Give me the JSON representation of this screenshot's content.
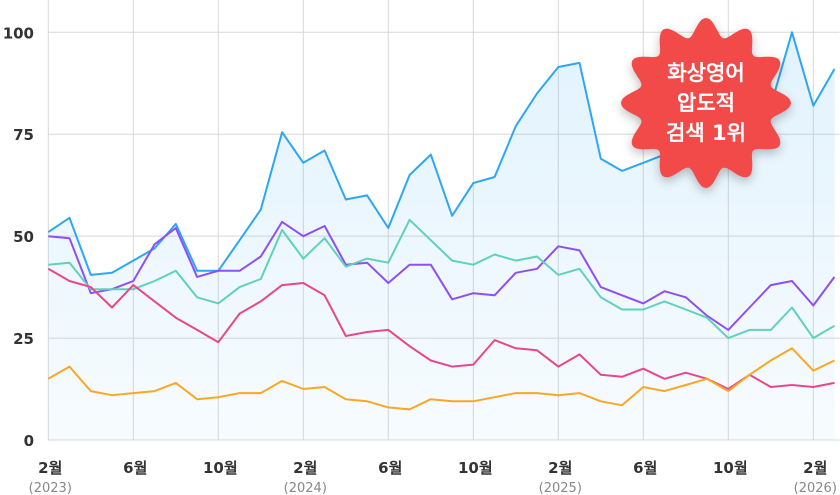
{
  "chart_data": {
    "type": "line",
    "title": "",
    "xlabel": "",
    "ylabel": "",
    "ylim": [
      0,
      100
    ],
    "yticks": [
      "0",
      "25",
      "50",
      "75",
      "100"
    ],
    "grid": true,
    "x": [
      "2023-02",
      "2023-03",
      "2023-04",
      "2023-05",
      "2023-06",
      "2023-07",
      "2023-08",
      "2023-09",
      "2023-10",
      "2023-11",
      "2023-12",
      "2024-01",
      "2024-02",
      "2024-03",
      "2024-04",
      "2024-05",
      "2024-06",
      "2024-07",
      "2024-08",
      "2024-09",
      "2024-10",
      "2024-11",
      "2024-12",
      "2025-01",
      "2025-02",
      "2025-03",
      "2025-04",
      "2025-05",
      "2025-06",
      "2025-07",
      "2025-08",
      "2025-09",
      "2025-10",
      "2025-11",
      "2025-12",
      "2026-01",
      "2026-02",
      "2026-03"
    ],
    "xticks": [
      {
        "label": "2월",
        "year": "(2023)",
        "index": 0
      },
      {
        "label": "6월",
        "year": "",
        "index": 4
      },
      {
        "label": "10월",
        "year": "",
        "index": 8
      },
      {
        "label": "2월",
        "year": "(2024)",
        "index": 12
      },
      {
        "label": "6월",
        "year": "",
        "index": 16
      },
      {
        "label": "10월",
        "year": "",
        "index": 20
      },
      {
        "label": "2월",
        "year": "(2025)",
        "index": 24
      },
      {
        "label": "6월",
        "year": "",
        "index": 28
      },
      {
        "label": "10월",
        "year": "",
        "index": 32
      },
      {
        "label": "2월",
        "year": "(2026)",
        "index": 36
      }
    ],
    "series": [
      {
        "color": "#2ea6f5",
        "filled": true,
        "values": [
          51,
          54.5,
          40.5,
          41,
          44,
          47,
          53,
          41.5,
          41.5,
          49,
          56.5,
          75.5,
          68,
          71,
          59,
          60,
          52,
          65,
          70,
          55,
          63,
          64.5,
          77,
          85,
          91.5,
          92.5,
          69,
          66,
          68,
          70,
          72,
          75,
          78,
          80,
          82,
          100,
          82,
          91
        ]
      },
      {
        "color": "#8e4ff5",
        "values": [
          50,
          49.5,
          36,
          37,
          39,
          48,
          52,
          40,
          41.5,
          41.5,
          45,
          53.5,
          50,
          52.5,
          43,
          43.5,
          38.5,
          43,
          43,
          34.5,
          36,
          35.5,
          41,
          42,
          47.5,
          46.5,
          37.5,
          35.5,
          33.5,
          36.5,
          35,
          30.5,
          27,
          32.5,
          38,
          39,
          33,
          40
        ]
      },
      {
        "color": "#5fd1bd",
        "values": [
          43,
          43.5,
          37,
          37,
          37,
          39,
          41.5,
          35,
          33.5,
          37.5,
          39.5,
          51.5,
          44.5,
          49.5,
          42.5,
          44.5,
          43.5,
          54,
          49,
          44,
          43,
          45.5,
          44,
          45,
          40.5,
          42,
          35,
          32,
          32,
          34,
          32,
          30,
          25,
          27,
          27,
          32.5,
          25,
          28
        ]
      },
      {
        "color": "#e8478c",
        "values": [
          42,
          39,
          37.5,
          32.5,
          38,
          34,
          30,
          27,
          24,
          31,
          34,
          38,
          38.5,
          35.5,
          25.5,
          26.5,
          27,
          23,
          19.5,
          18,
          18.5,
          24.5,
          22.5,
          22,
          18,
          21,
          16,
          15.5,
          17.5,
          15,
          16.5,
          15,
          12.5,
          16,
          13,
          13.5,
          13,
          14
        ]
      },
      {
        "color": "#f9a825",
        "values": [
          15,
          18,
          12,
          11,
          11.5,
          12,
          14,
          10,
          10.5,
          11.5,
          11.5,
          14.5,
          12.5,
          13,
          10,
          9.5,
          8,
          7.5,
          10,
          9.5,
          9.5,
          10.5,
          11.5,
          11.5,
          11,
          11.5,
          9.5,
          8.5,
          13,
          12,
          13.5,
          15,
          12,
          16,
          19.5,
          22.5,
          17,
          19.5
        ]
      }
    ]
  },
  "badge": {
    "color": "#f24a4a",
    "lines": [
      "화상영어",
      "압도적",
      "검색 1위"
    ]
  }
}
